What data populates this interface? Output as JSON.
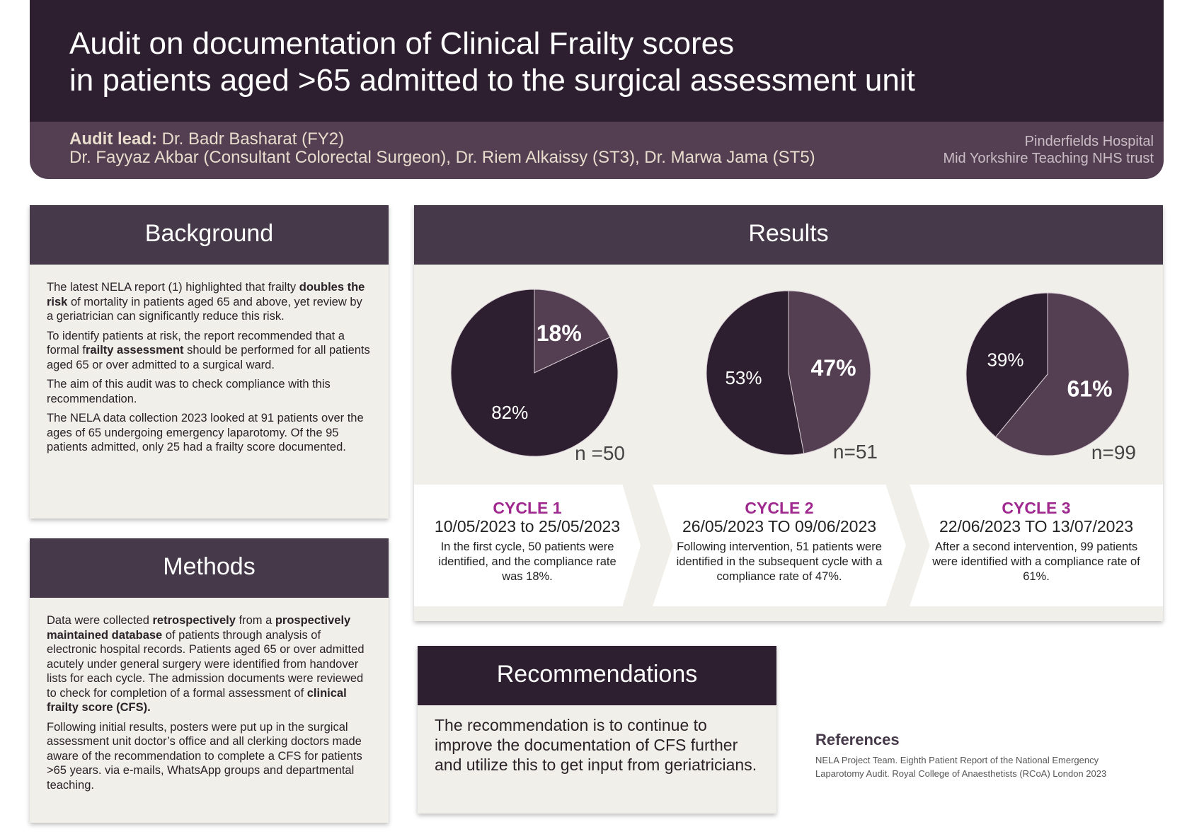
{
  "header": {
    "title_line1": "Audit on documentation of Clinical Frailty scores",
    "title_line2": "in patients aged >65 admitted to the surgical assessment unit",
    "lead_label": "Audit lead:",
    "lead_name": " Dr. Badr Basharat (FY2)",
    "authors": "Dr. Fayyaz Akbar (Consultant Colorectal Surgeon), Dr. Riem Alkaissy (ST3), Dr. Marwa Jama (ST5)",
    "hospital": "Pinderfields Hospital",
    "trust": "Mid Yorkshire Teaching NHS trust"
  },
  "background": {
    "title": "Background",
    "p1a": "The latest NELA report (1) highlighted that frailty ",
    "p1b": "doubles the risk",
    "p1c": " of mortality in patients aged 65 and above, yet review by a geriatrician can significantly reduce this risk.",
    "p2a": "To identify patients at risk, the report recommended that a formal f",
    "p2b": "railty assessment",
    "p2c": " should be performed for all patients aged 65 or over admitted to a surgical ward.",
    "p3": "The aim of this audit was to check compliance with this recommendation.",
    "p4": "The NELA data collection 2023 looked at 91 patients over the ages of 65 undergoing emergency laparotomy. Of the 95 patients admitted, only 25 had a frailty score documented."
  },
  "methods": {
    "title": "Methods",
    "p1a": "Data were collected ",
    "p1b": "retrospectively",
    "p1c": " from a ",
    "p1d": "prospectively maintained database",
    "p1e": " of patients through analysis of electronic hospital records. Patients aged 65 or over admitted acutely under general surgery were identified from handover lists for each cycle. The admission documents were reviewed to check for completion of a formal assessment of ",
    "p1f": "clinical frailty score (CFS).",
    "p2": "Following initial results, posters were put up in the surgical assessment unit doctor’s office and all clerking doctors made aware of the recommendation to complete a CFS for patients >65 years.  via e-mails, WhatsApp groups and departmental teaching."
  },
  "results": {
    "title": "Results",
    "cycles": [
      {
        "title": "CYCLE 1",
        "dates": "10/05/2023 to 25/05/2023",
        "text": "In the first cycle, 50 patients were identified, and the compliance rate was 18%."
      },
      {
        "title": "CYCLE 2",
        "dates": "26/05/2023 TO 09/06/2023",
        "text": "Following intervention, 51 patients were identified in the subsequent cycle with a compliance rate of 47%."
      },
      {
        "title": "CYCLE 3",
        "dates": "22/06/2023 TO 13/07/2023",
        "text": "After a second intervention, 99 patients were identified with a compliance rate of 61%."
      }
    ]
  },
  "chart_data": [
    {
      "type": "pie",
      "n_label": "n =50",
      "slices": [
        {
          "value": 18,
          "label": "18%",
          "color": "#543f52"
        },
        {
          "value": 82,
          "label": "82%",
          "color": "#2e1f30"
        }
      ]
    },
    {
      "type": "pie",
      "n_label": "n=51",
      "slices": [
        {
          "value": 47,
          "label": "47%",
          "color": "#543f52"
        },
        {
          "value": 53,
          "label": "53%",
          "color": "#2e1f30"
        }
      ]
    },
    {
      "type": "pie",
      "n_label": "n=99",
      "slices": [
        {
          "value": 61,
          "label": "61%",
          "color": "#543f52"
        },
        {
          "value": 39,
          "label": "39%",
          "color": "#2e1f30"
        }
      ]
    }
  ],
  "recommendations": {
    "title": "Recommendations",
    "text": "The recommendation is to continue to improve the documentation of CFS further and utilize this to get input from geriatricians."
  },
  "references": {
    "title": "References",
    "text": "NELA Project Team. Eighth Patient Report of the National Emergency Laparotomy Audit. Royal College of  Anaesthetists (RCoA) London 2023"
  },
  "colors": {
    "dark": "#2e1f30",
    "mid": "#543f52",
    "header": "#463a4a",
    "panel": "#f0efe9",
    "accent": "#a0298f"
  }
}
